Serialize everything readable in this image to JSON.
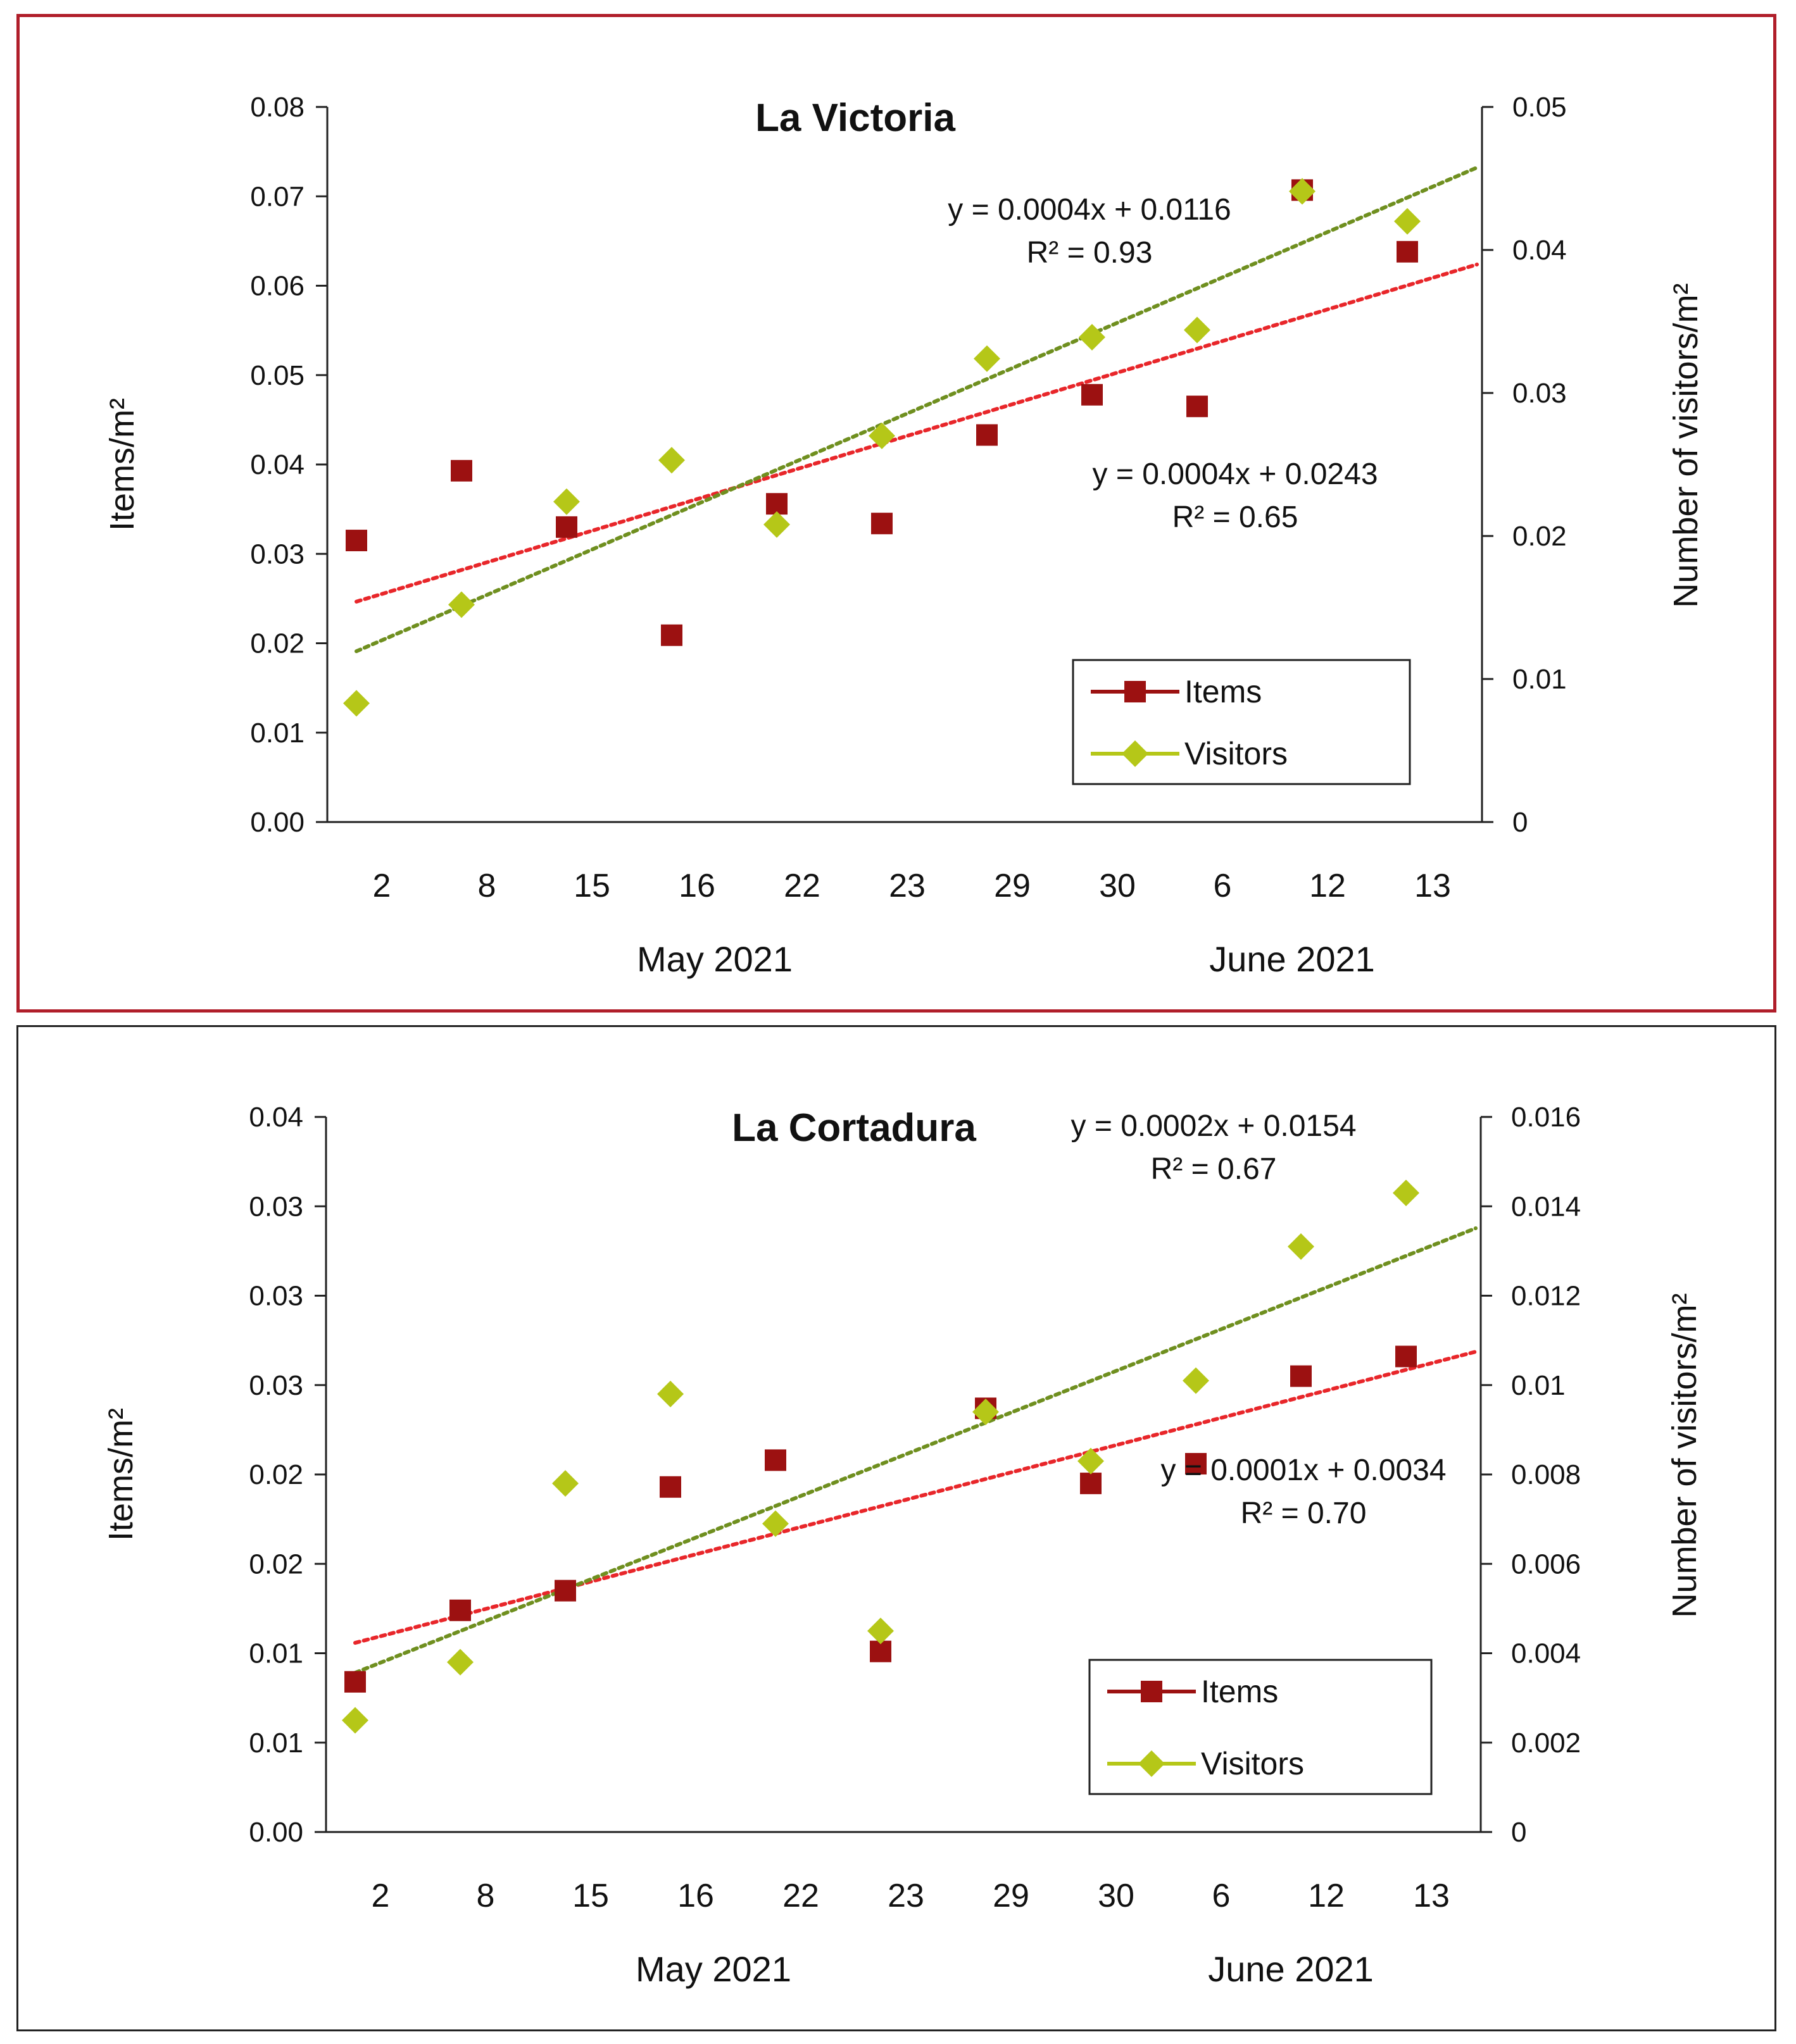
{
  "chart_data": [
    {
      "type": "scatter",
      "title": "La Victoria",
      "categories": [
        "2",
        "8",
        "15",
        "16",
        "22",
        "23",
        "29",
        "30",
        "6",
        "12",
        "13"
      ],
      "month_labels": [
        "May 2021",
        "June 2021"
      ],
      "ylabel": "Items/m²",
      "y2label": "Number of visitors/m²",
      "ylim": [
        0,
        0.08
      ],
      "y2lim": [
        0,
        0.05
      ],
      "yticks": [
        "0.00",
        "0.01",
        "0.02",
        "0.03",
        "0.04",
        "0.05",
        "0.06",
        "0.07",
        "0.08"
      ],
      "y2ticks": [
        "0",
        "0.01",
        "0.02",
        "0.03",
        "0.04",
        "0.05"
      ],
      "legend_position": "bottom-right",
      "series": [
        {
          "name": "Items",
          "axis": "left",
          "marker": "square",
          "color": "#9c1111",
          "values": [
            0.0315,
            0.0393,
            0.033,
            0.0209,
            0.0356,
            0.0334,
            0.0433,
            0.0478,
            0.0465,
            0.0707,
            0.0638
          ],
          "trendline": {
            "color": "#e8262a",
            "slope": 0.0004,
            "intercept": 0.0243,
            "equation": "y = 0.0004x + 0.0243",
            "r2": "R² = 0.65"
          }
        },
        {
          "name": "Visitors",
          "axis": "right",
          "marker": "diamond",
          "color": "#b5c718",
          "values": [
            0.0083,
            0.0152,
            0.0224,
            0.0253,
            0.0208,
            0.027,
            0.0324,
            0.0339,
            0.0344,
            0.0441,
            0.042
          ],
          "trendline": {
            "color": "#6f8f1f",
            "slope": 0.0004,
            "intercept": 0.0116,
            "equation": "y = 0.0004x + 0.0116",
            "r2": "R² = 0.93"
          }
        }
      ]
    },
    {
      "type": "scatter",
      "title": "La Cortadura",
      "categories": [
        "2",
        "8",
        "15",
        "16",
        "22",
        "23",
        "29",
        "30",
        "6",
        "12",
        "13"
      ],
      "month_labels": [
        "May 2021",
        "June 2021"
      ],
      "ylabel": "Items/m²",
      "y2label": "Number of visitors/m²",
      "ylim": [
        0,
        0.04
      ],
      "y2lim": [
        0,
        0.016
      ],
      "yticks": [
        "0.00",
        "0.01",
        "0.01",
        "0.02",
        "0.02",
        "0.03",
        "0.03",
        "0.03",
        "0.04"
      ],
      "y2ticks": [
        "0",
        "0.002",
        "0.004",
        "0.006",
        "0.008",
        "0.01",
        "0.012",
        "0.014",
        "0.016"
      ],
      "legend_position": "bottom-right",
      "series": [
        {
          "name": "Items",
          "axis": "left",
          "marker": "square",
          "color": "#9c1111",
          "values": [
            0.0084,
            0.0124,
            0.0135,
            0.0193,
            0.0208,
            0.0101,
            0.0237,
            0.0195,
            0.0206,
            0.0255,
            0.0266
          ],
          "trendline": {
            "color": "#e8262a",
            "slope": 0.0002,
            "intercept": 0.0154,
            "equation": "y = 0.0002x + 0.0154",
            "r2": "R² = 0.67"
          }
        },
        {
          "name": "Visitors",
          "axis": "right",
          "marker": "diamond",
          "color": "#b5c718",
          "values": [
            0.0025,
            0.0038,
            0.0078,
            0.0098,
            0.0069,
            0.0045,
            0.0094,
            0.0083,
            0.0101,
            0.0131,
            0.0143
          ],
          "trendline": {
            "color": "#6f8f1f",
            "slope": 0.0001,
            "intercept": 0.0034,
            "equation": "y = 0.0001x + 0.0034",
            "r2": "R² = 0.70"
          }
        }
      ]
    }
  ]
}
